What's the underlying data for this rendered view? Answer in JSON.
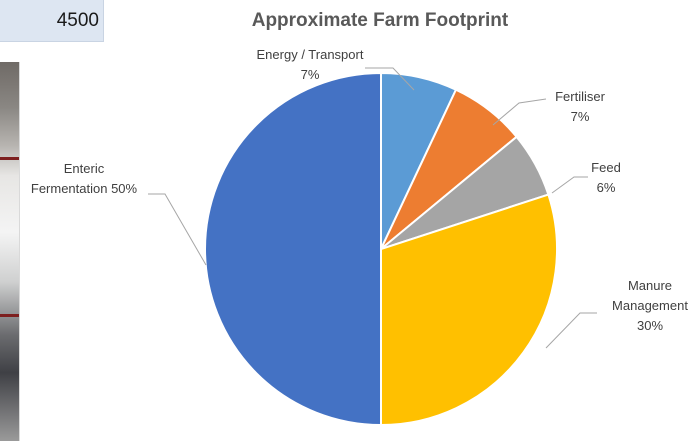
{
  "cell": {
    "value": "4500"
  },
  "chart_data": {
    "type": "pie",
    "title": "Approximate Farm Footprint",
    "slices": [
      {
        "name": "Energy / Transport",
        "value": 7,
        "color": "#5b9bd5",
        "label_lines": [
          "Energy / Transport",
          "7%"
        ]
      },
      {
        "name": "Fertiliser",
        "value": 7,
        "color": "#ed7d31",
        "label_lines": [
          "Fertiliser",
          "7%"
        ]
      },
      {
        "name": "Feed",
        "value": 6,
        "color": "#a5a5a5",
        "label_lines": [
          "Feed",
          "6%"
        ]
      },
      {
        "name": "Manure Management",
        "value": 30,
        "color": "#ffc000",
        "label_lines": [
          "Manure",
          "Management",
          "30%"
        ]
      },
      {
        "name": "Enteric Fermentation",
        "value": 50,
        "color": "#4472c4",
        "label_lines": [
          "Enteric",
          "Fermentation  50%"
        ]
      }
    ],
    "legend": "none",
    "data_labels": "outside with leader lines"
  }
}
